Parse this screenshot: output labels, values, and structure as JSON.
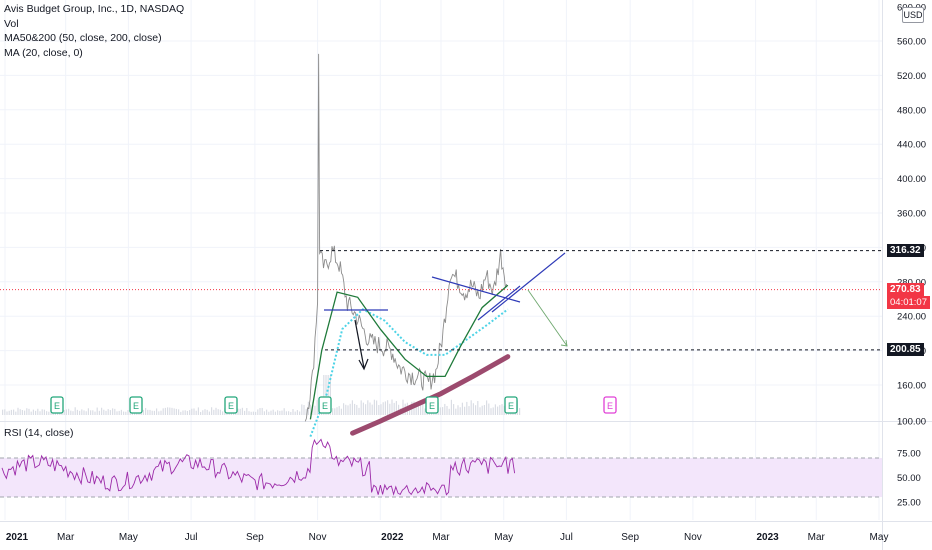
{
  "chart_data": {
    "type": "line",
    "title": "Avis Budget Group, Inc., 1D, NASDAQ",
    "legend": [
      "Vol",
      "MA50&200 (50, close, 200, close)",
      "MA (20, close, 0)"
    ],
    "currency": "USD",
    "price_axis": {
      "ticks": [
        "600.00",
        "560.00",
        "520.00",
        "480.00",
        "440.00",
        "400.00",
        "360.00",
        "320.00",
        "280.00",
        "240.00",
        "200.00",
        "160.00",
        "100.00"
      ],
      "range": [
        100,
        600
      ]
    },
    "price_labels": {
      "resistance": "316.32",
      "last": "270.83",
      "countdown": "04:01:07",
      "support": "200.85"
    },
    "x_axis": {
      "ticks": [
        "2021",
        "Mar",
        "May",
        "Jul",
        "Sep",
        "Nov",
        "2022",
        "Mar",
        "May",
        "Jul",
        "Sep",
        "Nov",
        "2023",
        "Mar",
        "May"
      ]
    },
    "earnings_markers": [
      "E",
      "E",
      "E",
      "E",
      "E",
      "E",
      "E"
    ],
    "series": [
      {
        "name": "Price",
        "color": "#8c8c8c",
        "x": [
          "2021-10-20",
          "2021-10-27",
          "2021-11-01",
          "2021-11-02",
          "2021-11-03",
          "2021-11-08",
          "2021-11-15",
          "2021-11-22",
          "2021-11-30",
          "2021-12-08",
          "2021-12-15",
          "2021-12-22",
          "2022-01-03",
          "2022-01-12",
          "2022-01-20",
          "2022-01-31",
          "2022-02-08",
          "2022-02-17",
          "2022-02-24",
          "2022-03-03",
          "2022-03-10",
          "2022-03-17",
          "2022-03-24",
          "2022-03-31",
          "2022-04-07",
          "2022-04-14",
          "2022-04-21",
          "2022-04-28",
          "2022-05-05"
        ],
        "values": [
          120,
          168,
          260,
          545,
          310,
          295,
          316,
          300,
          255,
          242,
          225,
          210,
          205,
          200,
          180,
          172,
          168,
          162,
          175,
          220,
          292,
          282,
          268,
          276,
          262,
          288,
          268,
          312,
          272
        ]
      },
      {
        "name": "MA50",
        "color": "#1f7a3a",
        "x": [
          "2021-10-25",
          "2021-11-05",
          "2021-11-20",
          "2021-12-10",
          "2022-01-01",
          "2022-01-25",
          "2022-02-15",
          "2022-03-05",
          "2022-03-20",
          "2022-04-10",
          "2022-05-05"
        ],
        "values": [
          120,
          200,
          268,
          262,
          225,
          190,
          170,
          170,
          205,
          250,
          276
        ]
      },
      {
        "name": "MA200",
        "color": "#9c4a6e",
        "x": [
          "2021-12-05",
          "2022-01-01",
          "2022-02-01",
          "2022-03-01",
          "2022-04-01",
          "2022-05-05"
        ],
        "values": [
          104,
          118,
          135,
          150,
          170,
          193
        ]
      },
      {
        "name": "MA20",
        "color": "#4dd3e6",
        "x": [
          "2021-10-25",
          "2021-11-10",
          "2021-11-25",
          "2021-12-15",
          "2022-01-05",
          "2022-01-25",
          "2022-02-15",
          "2022-03-05",
          "2022-03-25",
          "2022-04-15",
          "2022-05-05"
        ],
        "values": [
          100,
          150,
          225,
          248,
          235,
          210,
          195,
          195,
          212,
          230,
          248
        ]
      }
    ],
    "rsi": {
      "label": "RSI (14, close)",
      "ticks": [
        "75.00",
        "50.00",
        "25.00"
      ],
      "band": [
        30,
        70
      ],
      "range": [
        20,
        100
      ]
    },
    "annotations": {
      "resistance_level": 316.32,
      "support_level": 200.85,
      "last_price": 270.83
    }
  }
}
